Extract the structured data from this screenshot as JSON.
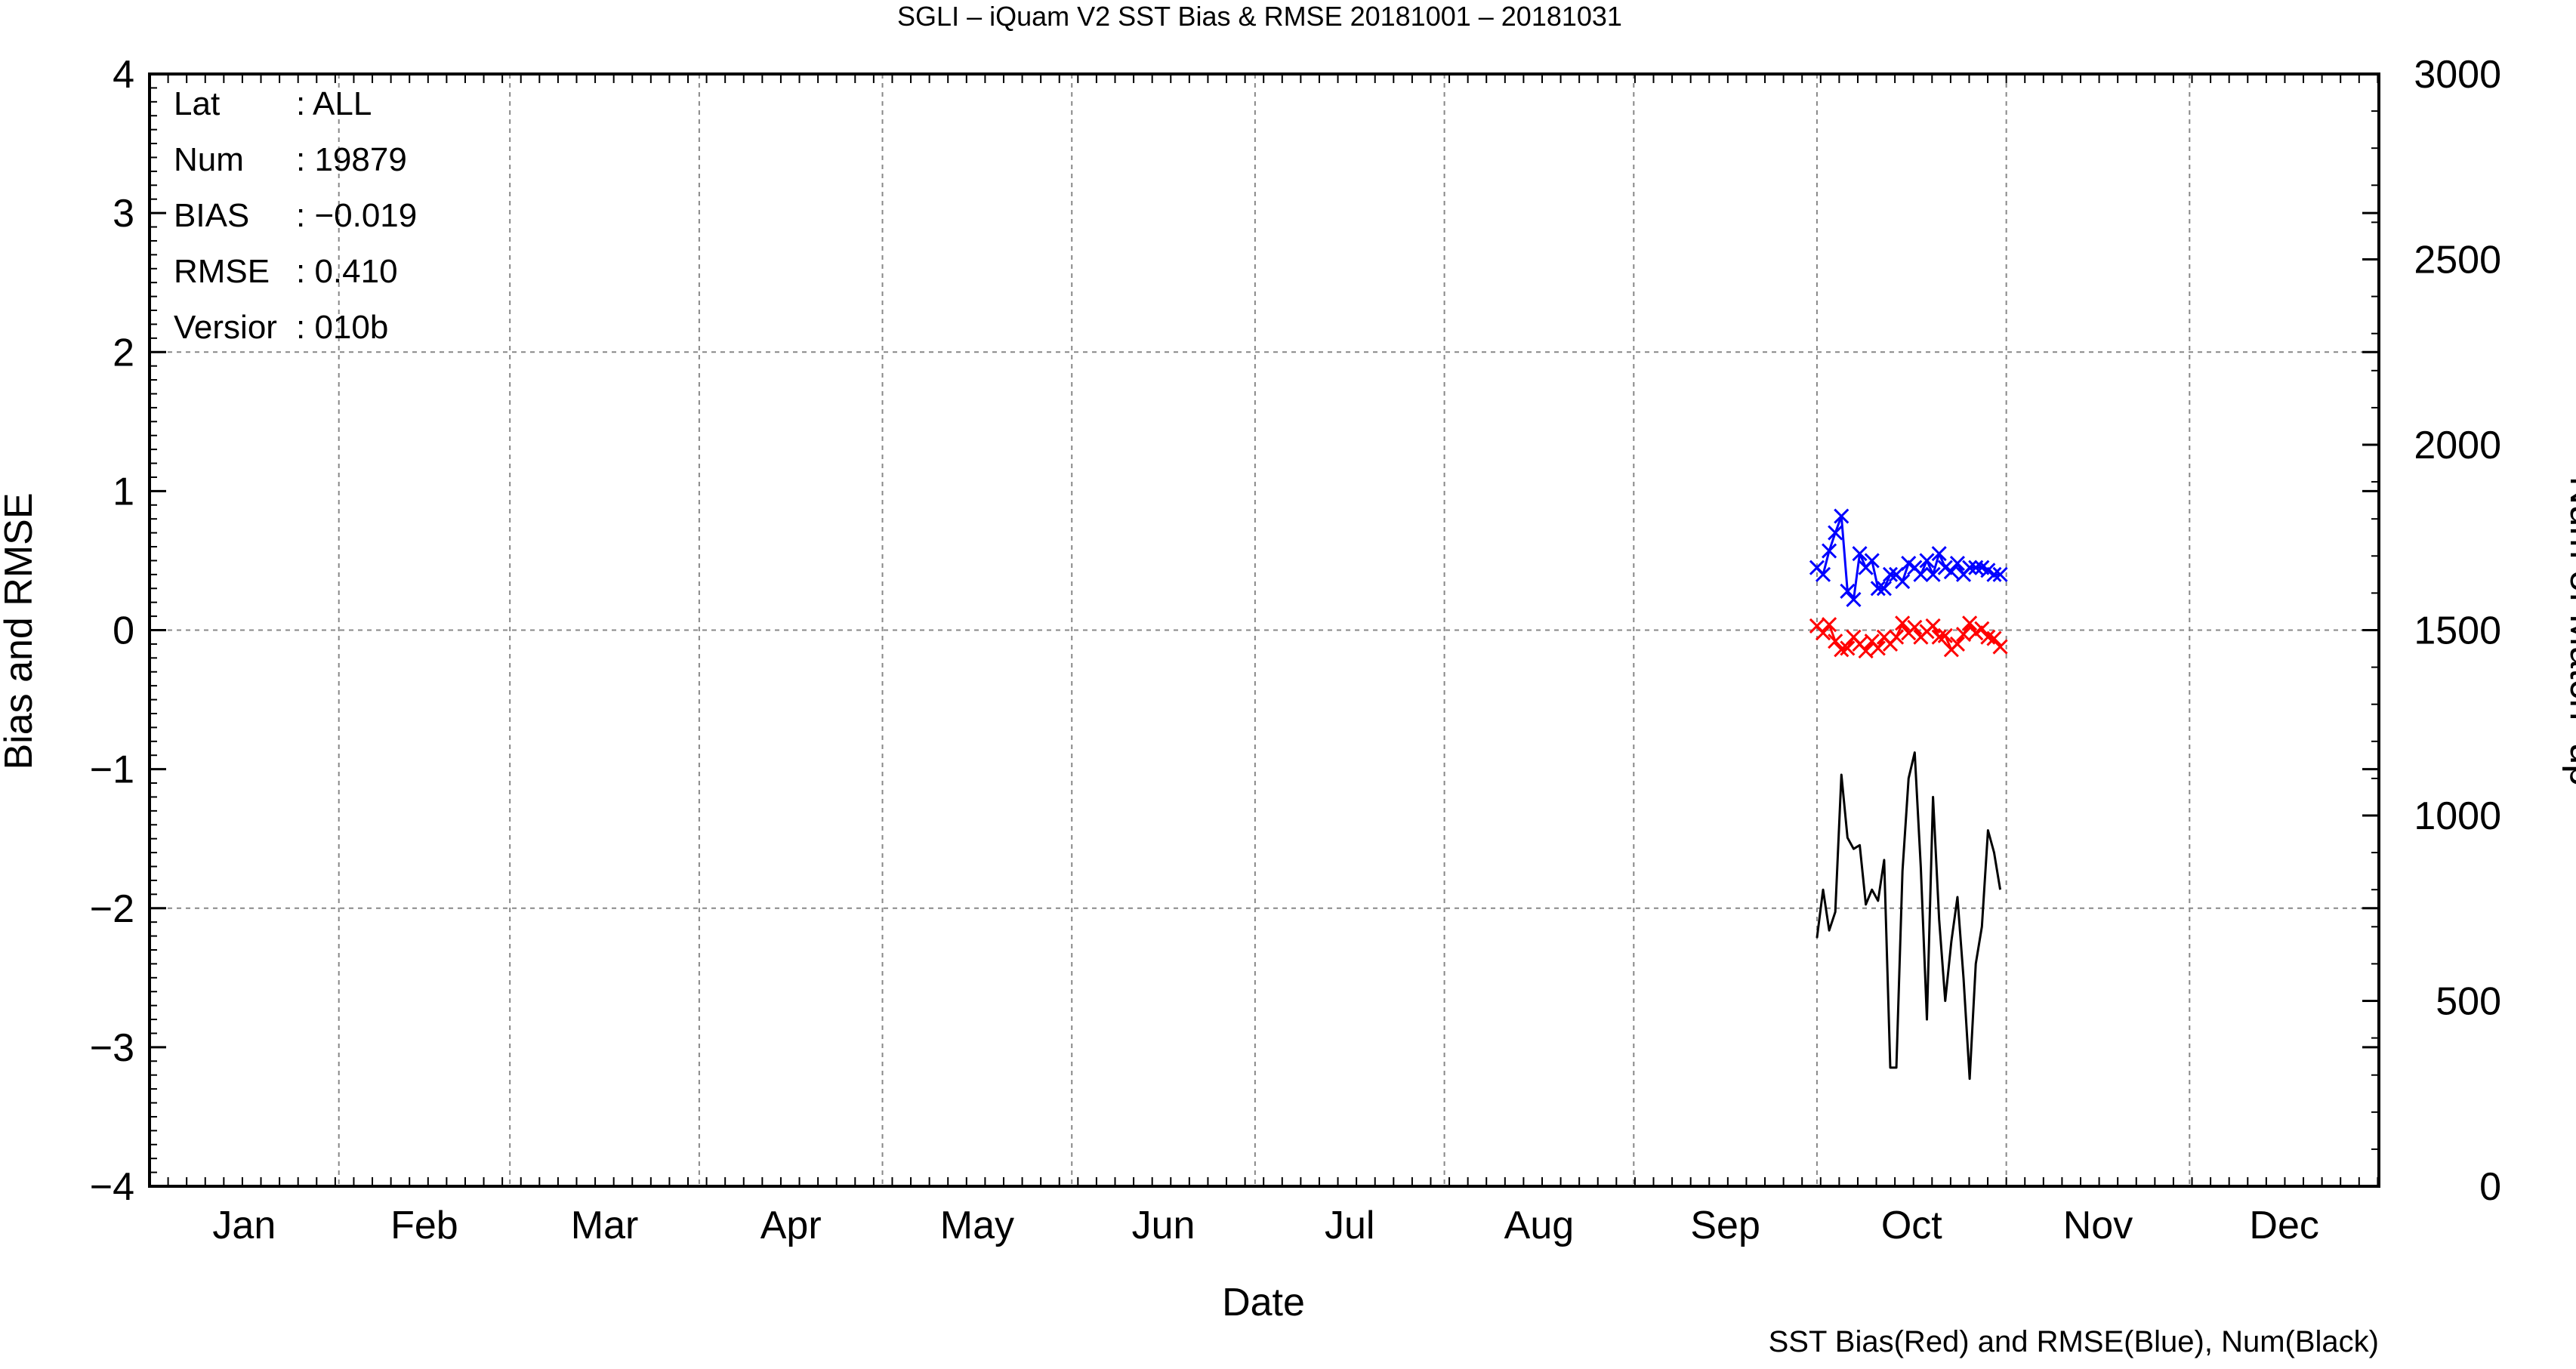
{
  "chart_data": {
    "type": "line",
    "title": "SGLI – iQuam V2 SST Bias & RMSE 20181001 – 20181031",
    "xlabel": "Date",
    "ylabel_left": "Bias and RMSE",
    "ylabel_right": "Num of Match–up",
    "caption": "SST Bias(Red) and RMSE(Blue), Num(Black)",
    "months": [
      "Jan",
      "Feb",
      "Mar",
      "Apr",
      "May",
      "Jun",
      "Jul",
      "Aug",
      "Sep",
      "Oct",
      "Nov",
      "Dec"
    ],
    "ylim_left": [
      -4,
      4
    ],
    "yticks_left": [
      "−4",
      "−3",
      "−2",
      "−1",
      "0",
      "1",
      "2",
      "3",
      "4"
    ],
    "ylim_right": [
      0,
      3000
    ],
    "yticks_right": [
      "0",
      "500",
      "1000",
      "1500",
      "2000",
      "2500",
      "3000"
    ],
    "x_range_days": [
      0,
      365
    ],
    "grid": true,
    "stats": [
      {
        "key": "Lat",
        "value": ": ALL"
      },
      {
        "key": "Num",
        "value": ": 19879"
      },
      {
        "key": "BIAS",
        "value": ": −0.019"
      },
      {
        "key": "RMSE",
        "value": ": 0.410"
      },
      {
        "key": "Versior",
        "value": ": 010b"
      }
    ],
    "x_days": [
      273,
      274,
      275,
      276,
      277,
      278,
      279,
      280,
      281,
      282,
      283,
      284,
      285,
      286,
      287,
      288,
      289,
      290,
      291,
      292,
      293,
      294,
      295,
      296,
      297,
      298,
      299,
      300,
      301,
      302,
      303
    ],
    "series": [
      {
        "name": "SST Bias(Red)",
        "color": "#ff0000",
        "marker": "x",
        "axis": "left",
        "values": [
          0.03,
          -0.02,
          0.04,
          -0.08,
          -0.14,
          -0.13,
          -0.05,
          -0.1,
          -0.15,
          -0.08,
          -0.13,
          -0.05,
          -0.1,
          -0.05,
          0.05,
          -0.02,
          0.02,
          -0.05,
          -0.01,
          0.03,
          -0.05,
          -0.04,
          -0.14,
          -0.1,
          -0.03,
          0.05,
          -0.02,
          0.01,
          -0.05,
          -0.06,
          -0.12
        ]
      },
      {
        "name": "RMSE(Blue)",
        "color": "#0000ff",
        "marker": "x",
        "axis": "left",
        "values": [
          0.45,
          0.4,
          0.57,
          0.7,
          0.82,
          0.28,
          0.22,
          0.55,
          0.45,
          0.5,
          0.3,
          0.3,
          0.4,
          0.4,
          0.35,
          0.48,
          0.45,
          0.4,
          0.5,
          0.4,
          0.55,
          0.45,
          0.42,
          0.48,
          0.4,
          0.45,
          0.45,
          0.45,
          0.43,
          0.4,
          0.4
        ]
      },
      {
        "name": "Num(Black)",
        "color": "#000000",
        "marker": "none",
        "axis": "right",
        "values": [
          670,
          800,
          690,
          740,
          1110,
          940,
          910,
          920,
          760,
          800,
          770,
          880,
          320,
          320,
          850,
          1100,
          1170,
          860,
          450,
          1050,
          720,
          500,
          660,
          780,
          560,
          290,
          600,
          700,
          960,
          900,
          800
        ]
      }
    ]
  }
}
